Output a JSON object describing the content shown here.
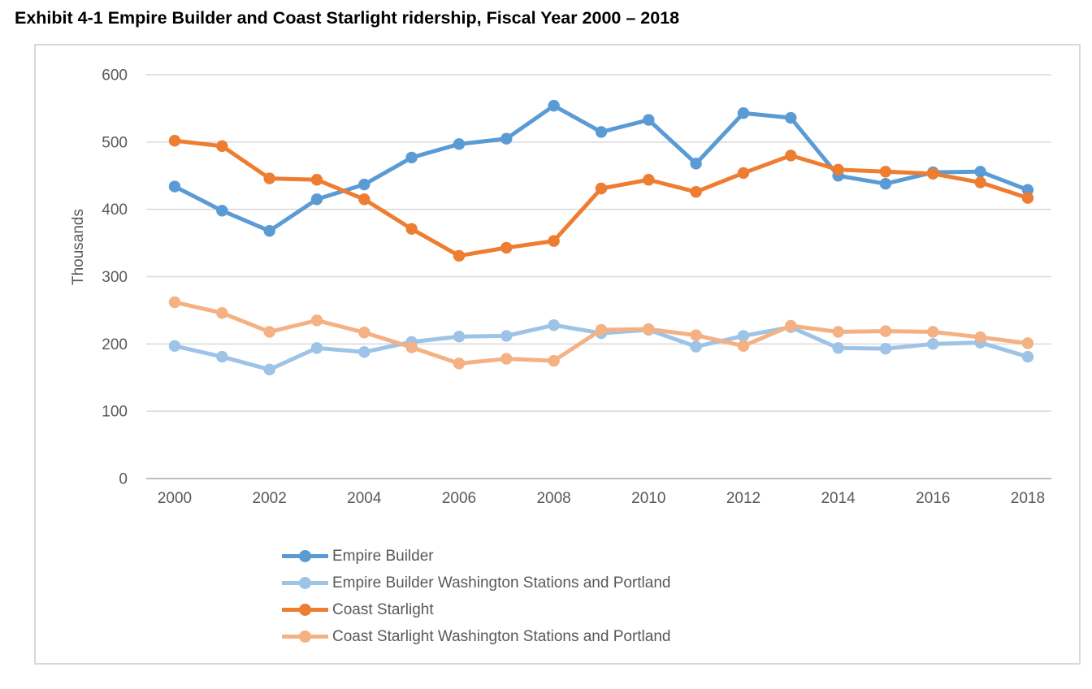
{
  "title": "Exhibit 4-1 Empire Builder and Coast Starlight ridership, Fiscal Year 2000 – 2018",
  "chart_data": {
    "type": "line",
    "title": "Exhibit 4-1 Empire Builder and Coast Starlight ridership, Fiscal Year 2000 – 2018",
    "xlabel": "",
    "ylabel": "Thousands",
    "ylim": [
      0,
      600
    ],
    "y_ticks": [
      0,
      100,
      200,
      300,
      400,
      500,
      600
    ],
    "x": [
      2000,
      2001,
      2002,
      2003,
      2004,
      2005,
      2006,
      2007,
      2008,
      2009,
      2010,
      2011,
      2012,
      2013,
      2014,
      2015,
      2016,
      2017,
      2018
    ],
    "x_tick_labels": [
      "2000",
      "2002",
      "2004",
      "2006",
      "2008",
      "2010",
      "2012",
      "2014",
      "2016",
      "2018"
    ],
    "grid": true,
    "legend_position": "bottom-left",
    "axis_color": "#bfbfbf",
    "grid_color": "#d9d9d9",
    "text_color": "#595959",
    "series": [
      {
        "name": "Empire Builder",
        "color": "#5B9BD5",
        "values": [
          434,
          398,
          368,
          415,
          437,
          477,
          497,
          505,
          554,
          515,
          533,
          468,
          543,
          536,
          450,
          438,
          455,
          456,
          429
        ]
      },
      {
        "name": "Empire Builder Washington Stations and Portland",
        "color": "#9DC3E6",
        "values": [
          197,
          181,
          162,
          194,
          188,
          203,
          211,
          212,
          228,
          216,
          221,
          196,
          212,
          225,
          194,
          193,
          200,
          202,
          181
        ]
      },
      {
        "name": "Coast Starlight",
        "color": "#ED7D31",
        "values": [
          502,
          494,
          446,
          444,
          415,
          371,
          331,
          343,
          353,
          431,
          444,
          426,
          454,
          480,
          459,
          456,
          453,
          440,
          417
        ]
      },
      {
        "name": "Coast Starlight Washington Stations and Portland",
        "color": "#F4B183",
        "values": [
          262,
          246,
          218,
          235,
          217,
          195,
          171,
          178,
          175,
          221,
          222,
          213,
          197,
          227,
          218,
          219,
          218,
          210,
          201
        ]
      }
    ]
  }
}
